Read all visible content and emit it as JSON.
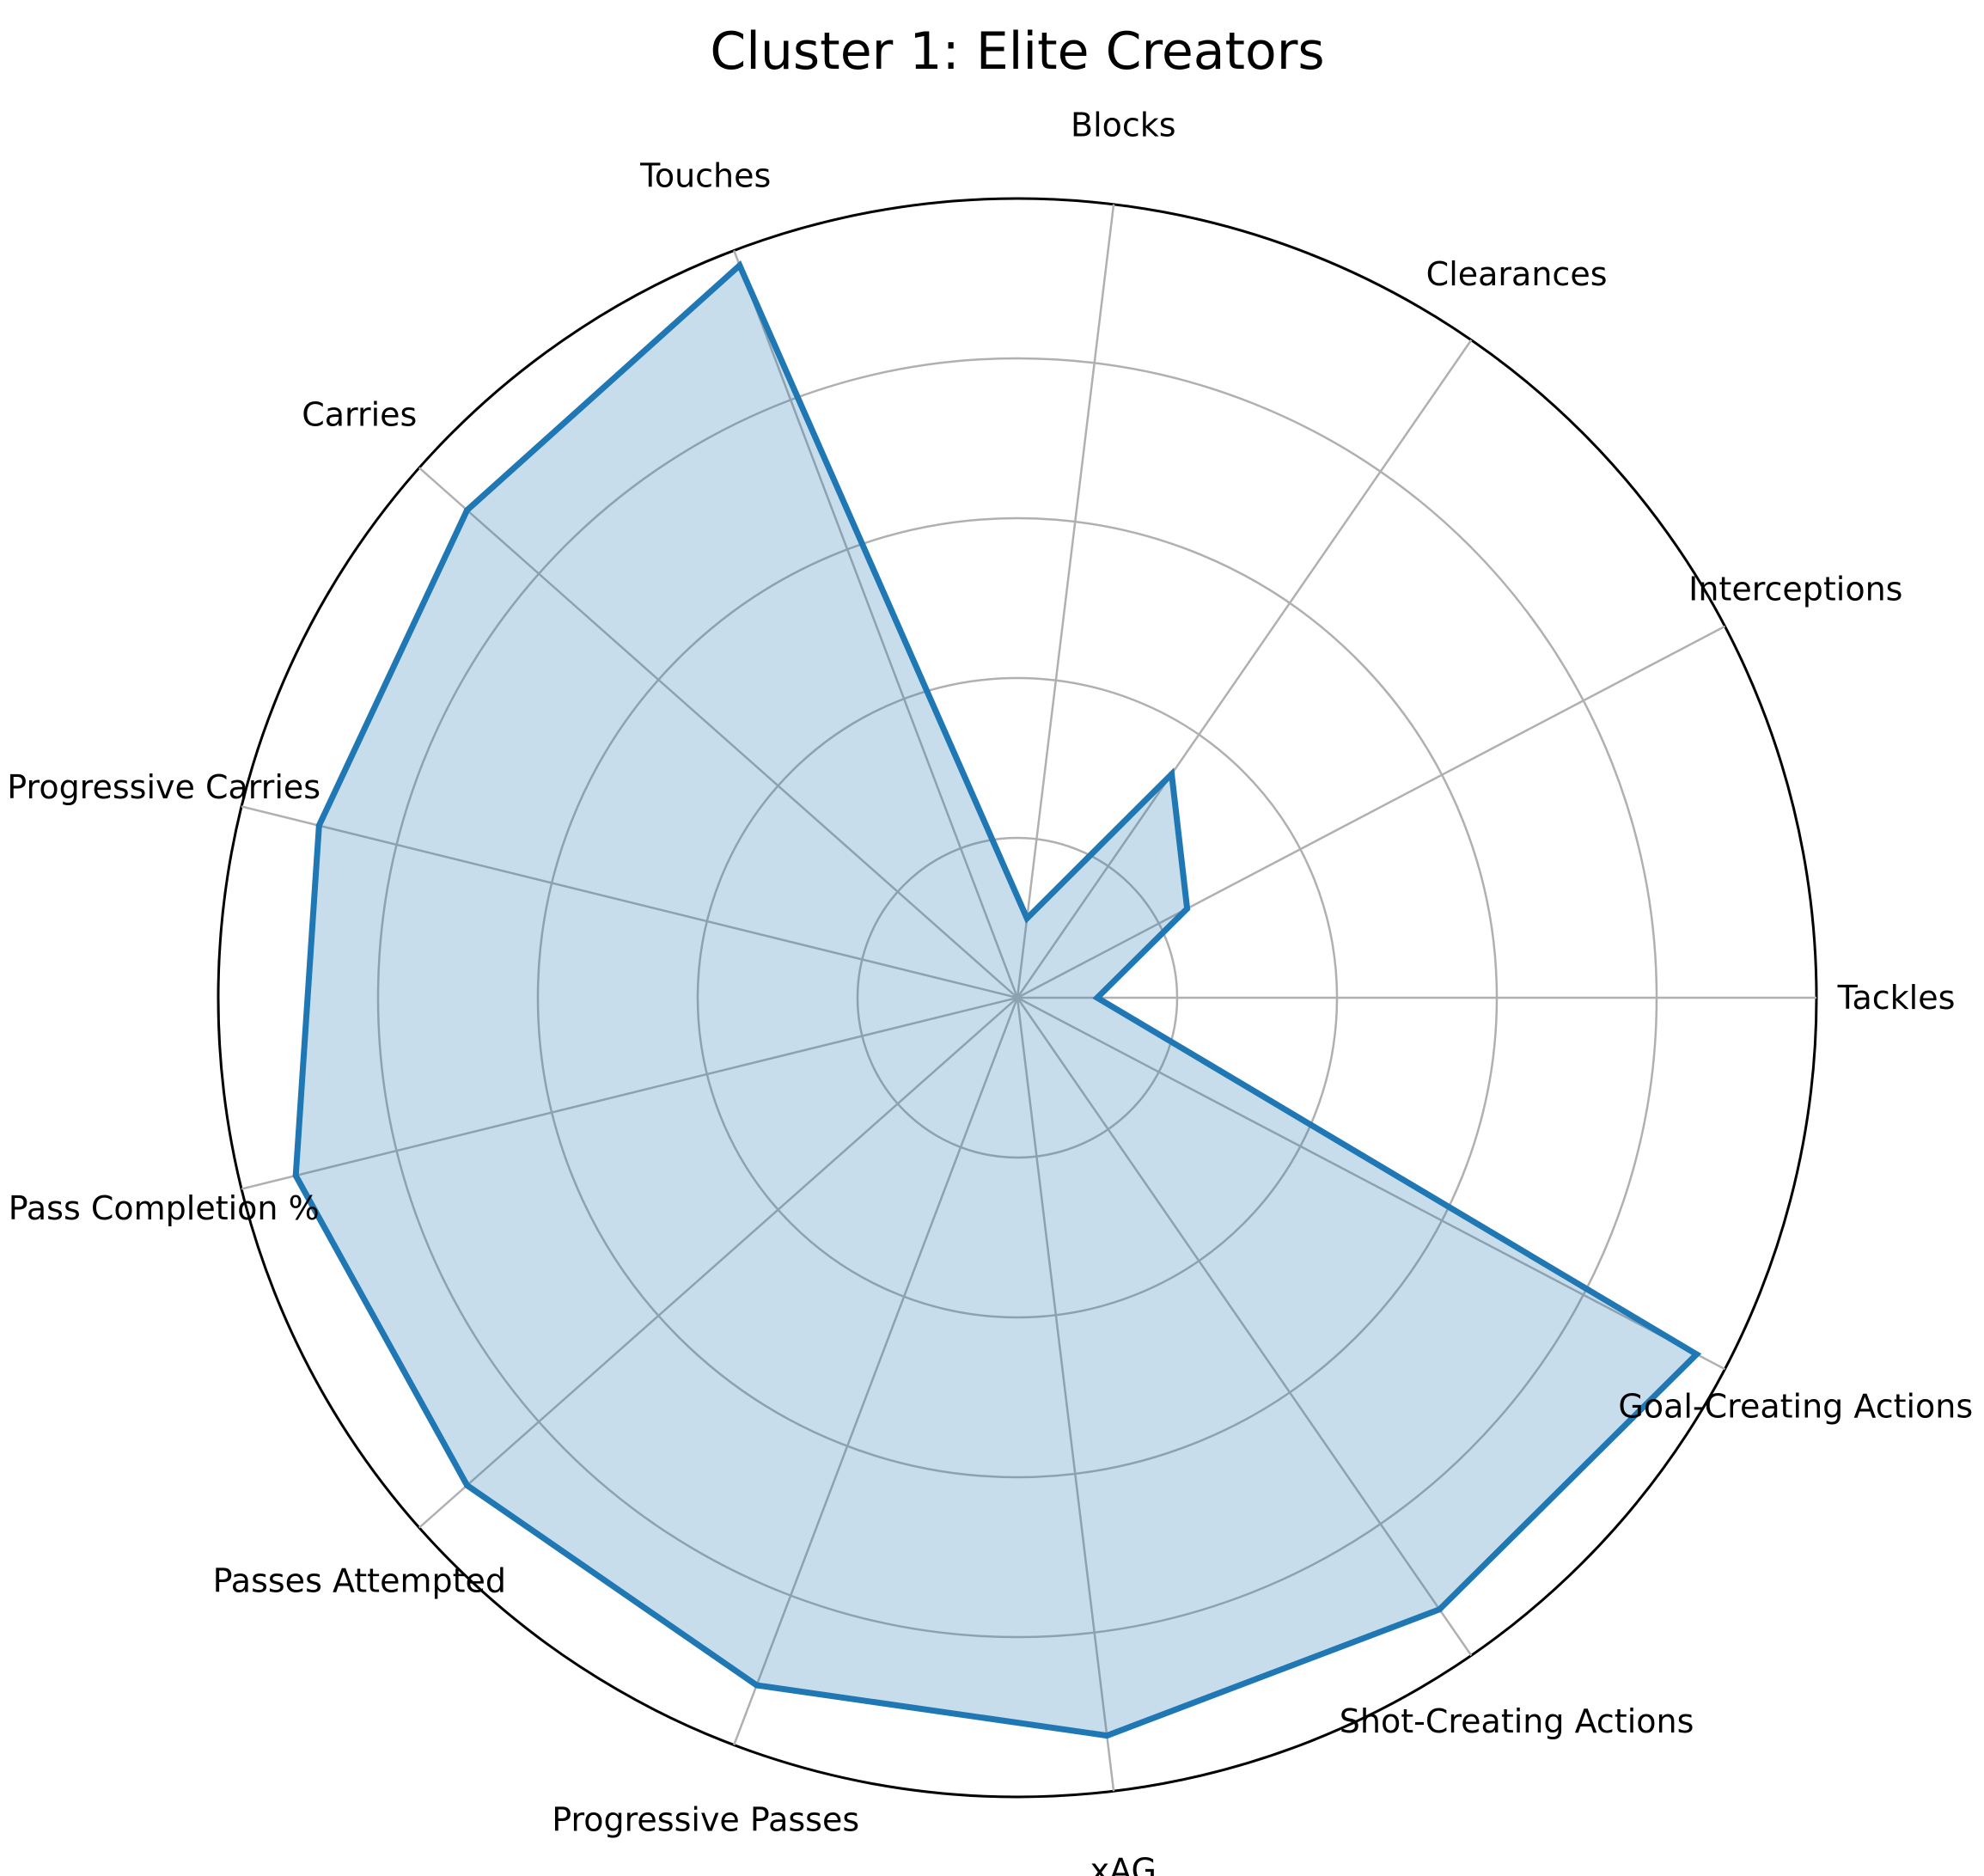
{
  "chart_data": {
    "type": "radar",
    "title": "Cluster 1: Elite Creators",
    "categories": [
      "Tackles",
      "Interceptions",
      "Clearances",
      "Blocks",
      "Touches",
      "Carries",
      "Progressive Carries",
      "Pass Completion %",
      "Passes Attempted",
      "Progressive Passes",
      "xAG",
      "Shot-Creating Actions",
      "Goal-Creating Actions"
    ],
    "values": [
      0.1,
      0.24,
      0.34,
      0.1,
      0.98,
      0.92,
      0.9,
      0.93,
      0.92,
      0.92,
      0.93,
      0.93,
      0.96
    ],
    "rlim": [
      0,
      1
    ],
    "r_ticks": [
      0.2,
      0.4,
      0.6,
      0.8,
      1.0
    ],
    "radial_tick_labels_shown": false,
    "grid": true,
    "colors": {
      "line": "#1f77b4",
      "fill": "#1f77b4",
      "fill_alpha": 0.25,
      "grid": "#b0b0b0",
      "frame": "#000000"
    }
  }
}
